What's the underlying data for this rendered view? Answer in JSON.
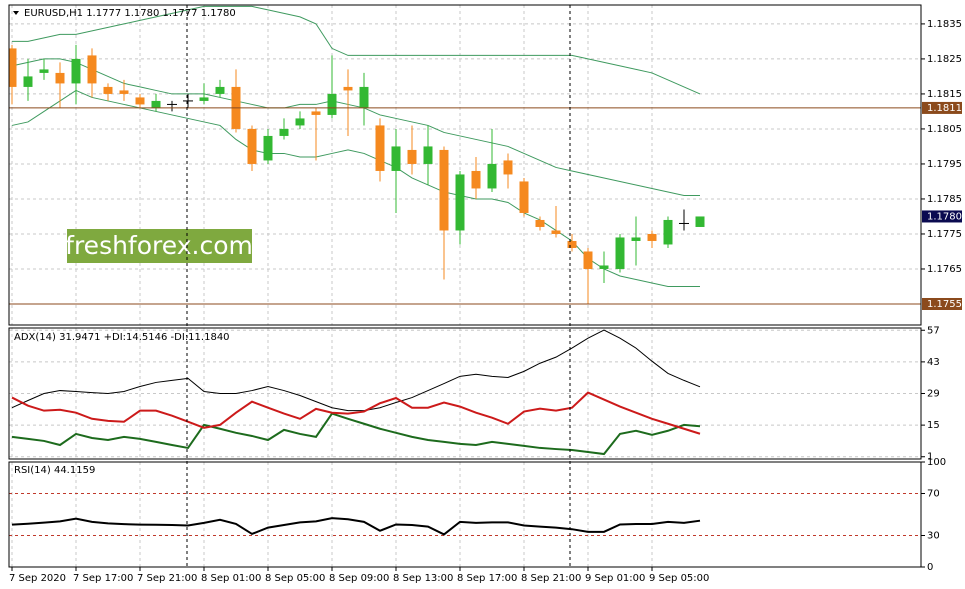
{
  "chart_data": [
    {
      "type": "candlestick",
      "title": "EURUSD,H1  1.1777 1.1780 1.1777 1.1780",
      "watermark": "freshforex.com",
      "open": [
        1.1828,
        1.1817,
        1.1821,
        1.1821,
        1.1818,
        1.1826,
        1.1817,
        1.1816,
        1.1814,
        1.1811,
        1.1812,
        1.1813,
        1.1813,
        1.1815,
        1.1817,
        1.1805,
        1.1796,
        1.1803,
        1.1806,
        1.181,
        1.1809,
        1.1817,
        1.1811,
        1.1806,
        1.1793,
        1.1799,
        1.1795,
        1.1799,
        1.1776,
        1.1793,
        1.1788,
        1.1796,
        1.179,
        1.1779,
        1.1776,
        1.1773,
        1.177,
        1.1765,
        1.1765,
        1.1773,
        1.1775,
        1.1772,
        1.1778,
        1.1777
      ],
      "high": [
        1.1829,
        1.1825,
        1.1825,
        1.1824,
        1.1829,
        1.1828,
        1.1818,
        1.1819,
        1.1815,
        1.1815,
        1.1813,
        1.1815,
        1.1818,
        1.1819,
        1.1822,
        1.1806,
        1.1805,
        1.1808,
        1.181,
        1.1811,
        1.1826,
        1.1822,
        1.1821,
        1.1808,
        1.1805,
        1.1806,
        1.1806,
        1.18,
        1.1793,
        1.1797,
        1.1805,
        1.1798,
        1.1791,
        1.178,
        1.1783,
        1.1775,
        1.1771,
        1.177,
        1.1775,
        1.178,
        1.1776,
        1.178,
        1.1782,
        1.178
      ],
      "low": [
        1.1812,
        1.1813,
        1.1819,
        1.1811,
        1.1812,
        1.1814,
        1.1813,
        1.1813,
        1.1811,
        1.181,
        1.181,
        1.1811,
        1.1812,
        1.1814,
        1.1804,
        1.1793,
        1.1795,
        1.1802,
        1.1805,
        1.1796,
        1.1808,
        1.1803,
        1.1806,
        1.179,
        1.1781,
        1.1792,
        1.1789,
        1.1762,
        1.1772,
        1.1785,
        1.1787,
        1.1788,
        1.178,
        1.1776,
        1.1774,
        1.177,
        1.1755,
        1.1761,
        1.1764,
        1.1766,
        1.1771,
        1.1771,
        1.1776,
        1.1777
      ],
      "close": [
        1.1817,
        1.182,
        1.1822,
        1.1818,
        1.1825,
        1.1818,
        1.1815,
        1.1815,
        1.1812,
        1.1813,
        1.1812,
        1.1813,
        1.1814,
        1.1817,
        1.1805,
        1.1795,
        1.1803,
        1.1805,
        1.1808,
        1.1809,
        1.1815,
        1.1816,
        1.1817,
        1.1793,
        1.18,
        1.1795,
        1.18,
        1.1776,
        1.1792,
        1.1788,
        1.1795,
        1.1792,
        1.1781,
        1.1777,
        1.1775,
        1.1771,
        1.1765,
        1.1766,
        1.1774,
        1.1774,
        1.1773,
        1.1779,
        1.1778,
        1.178
      ],
      "up_color": "#33b833",
      "down_color": "#f5891f",
      "doji_color": "#000000",
      "bands": [
        {
          "color": "#3f9a5f",
          "values": [
            1.183,
            1.183,
            1.1831,
            1.1832,
            1.1832,
            1.1833,
            1.1834,
            1.1835,
            1.1836,
            1.1837,
            1.1838,
            1.1839,
            1.184,
            1.184,
            1.184,
            1.184,
            1.1839,
            1.1838,
            1.1837,
            1.1835,
            1.1828,
            1.1826,
            1.1826,
            1.1826,
            1.1826,
            1.1826,
            1.1826,
            1.1826,
            1.1826,
            1.1826,
            1.1826,
            1.1826,
            1.1826,
            1.1826,
            1.1826,
            1.1826,
            1.1825,
            1.1824,
            1.1823,
            1.1822,
            1.1821,
            1.1819,
            1.1817,
            1.1815
          ]
        },
        {
          "color": "#3f9a5f",
          "values": [
            1.1823,
            1.1824,
            1.1825,
            1.1825,
            1.1824,
            1.1822,
            1.182,
            1.1818,
            1.1817,
            1.1816,
            1.1815,
            1.1815,
            1.1815,
            1.1814,
            1.1813,
            1.1812,
            1.1811,
            1.1811,
            1.1812,
            1.1812,
            1.1813,
            1.1812,
            1.1811,
            1.1809,
            1.1808,
            1.1807,
            1.1806,
            1.1804,
            1.1803,
            1.1802,
            1.1801,
            1.18,
            1.1798,
            1.1796,
            1.1794,
            1.1793,
            1.1792,
            1.1791,
            1.179,
            1.1789,
            1.1788,
            1.1787,
            1.1786,
            1.1786
          ]
        },
        {
          "color": "#3f9a5f",
          "values": [
            1.1806,
            1.1807,
            1.181,
            1.1813,
            1.1816,
            1.1814,
            1.1813,
            1.1812,
            1.1811,
            1.181,
            1.1809,
            1.1808,
            1.1807,
            1.1806,
            1.1802,
            1.1799,
            1.1798,
            1.1798,
            1.1797,
            1.1797,
            1.1798,
            1.1799,
            1.1798,
            1.1796,
            1.1794,
            1.1791,
            1.1789,
            1.1787,
            1.1786,
            1.1785,
            1.1785,
            1.1784,
            1.1781,
            1.1779,
            1.1776,
            1.1773,
            1.1768,
            1.1765,
            1.1763,
            1.1762,
            1.1761,
            1.176,
            1.176,
            1.176
          ]
        }
      ],
      "levels": [
        {
          "value": 1.1811,
          "color": "#8b4a1c"
        },
        {
          "value": 1.1755,
          "color": "#8b4a1c"
        }
      ],
      "last_price": {
        "value": 1.178,
        "label": "1.1780",
        "color": "#0a0a50"
      },
      "ylim": [
        1.1749,
        1.18404
      ],
      "yticks": [
        1.1835,
        1.1825,
        1.1815,
        1.1805,
        1.1795,
        1.1785,
        1.1775,
        1.1765
      ],
      "grid": true
    },
    {
      "type": "line",
      "title": "ADX(14) 31.9471 +DI:14.5146 -DI:11.1840",
      "series": [
        {
          "color": "#000000",
          "values": [
            22.7,
            25.9,
            29.0,
            30.3,
            29.9,
            29.4,
            29.0,
            29.9,
            32.1,
            33.9,
            34.8,
            35.7,
            29.9,
            29.0,
            29.0,
            30.3,
            32.1,
            30.3,
            28.1,
            25.4,
            22.7,
            21.4,
            21.4,
            22.7,
            25.0,
            27.2,
            30.3,
            33.4,
            36.6,
            37.5,
            36.6,
            36.1,
            38.8,
            42.4,
            45.1,
            49.1,
            53.5,
            57.1,
            53.5,
            49.1,
            43.3,
            37.9,
            34.8,
            31.9471
          ]
        },
        {
          "color": "#1d6b1d",
          "values": [
            9.8,
            8.9,
            8.0,
            6.2,
            11.1,
            9.3,
            8.4,
            9.8,
            8.9,
            7.6,
            6.2,
            4.9,
            15.1,
            13.4,
            11.6,
            10.2,
            8.4,
            12.9,
            11.1,
            9.8,
            20.1,
            17.8,
            15.6,
            13.4,
            11.6,
            9.8,
            8.4,
            7.6,
            6.7,
            6.2,
            7.6,
            6.7,
            5.8,
            4.9,
            4.4,
            4.0,
            3.1,
            2.2,
            11.1,
            12.5,
            10.7,
            12.5,
            15.1,
            14.5146
          ]
        },
        {
          "color": "#cc1a1a",
          "values": [
            27.2,
            23.6,
            21.4,
            21.8,
            20.5,
            17.8,
            16.9,
            16.5,
            21.4,
            21.4,
            19.2,
            16.5,
            13.8,
            15.1,
            20.5,
            25.4,
            22.7,
            20.1,
            17.8,
            22.2,
            20.5,
            20.1,
            21.0,
            24.7,
            27.0,
            22.7,
            22.7,
            25.0,
            23.2,
            20.5,
            18.3,
            15.6,
            21.0,
            22.3,
            21.4,
            22.7,
            29.4,
            26.3,
            23.2,
            20.5,
            17.8,
            15.6,
            13.4,
            11.184
          ]
        }
      ],
      "ylim": [
        0,
        58
      ],
      "yticks": [
        57,
        43,
        29,
        15,
        1
      ],
      "grid": true
    },
    {
      "type": "line",
      "title": "RSI(14) 44.1159",
      "series": [
        {
          "color": "#000000",
          "values": [
            40.4,
            41.2,
            42.3,
            43.5,
            46.0,
            43.0,
            41.5,
            40.8,
            40.4,
            40.2,
            40.0,
            39.5,
            42.0,
            45.0,
            41.0,
            31.5,
            37.5,
            40.0,
            42.5,
            43.5,
            46.5,
            45.5,
            43.0,
            34.5,
            40.5,
            40.0,
            38.5,
            31.0,
            43.0,
            42.0,
            42.5,
            42.5,
            39.5,
            38.5,
            37.5,
            36.0,
            33.5,
            33.5,
            40.5,
            41.0,
            41.0,
            43.0,
            42.0,
            44.1159
          ]
        }
      ],
      "levels": [
        70,
        30
      ],
      "level_color": "#c0392b",
      "ylim": [
        0,
        100
      ],
      "yticks": [
        100,
        70,
        30,
        0
      ],
      "grid": true,
      "categories": [
        "7 Sep 2020",
        null,
        null,
        null,
        "7 Sep 17:00",
        null,
        null,
        null,
        "7 Sep 21:00",
        null,
        null,
        null,
        "8 Sep 01:00",
        null,
        null,
        null,
        "8 Sep 05:00",
        null,
        null,
        null,
        "8 Sep 09:00",
        null,
        null,
        null,
        "8 Sep 13:00",
        null,
        null,
        null,
        "8 Sep 17:00",
        null,
        null,
        null,
        "8 Sep 21:00",
        null,
        null,
        null,
        "9 Sep 01:00",
        null,
        null,
        null,
        "9 Sep 05:00",
        null,
        null,
        null
      ]
    }
  ]
}
